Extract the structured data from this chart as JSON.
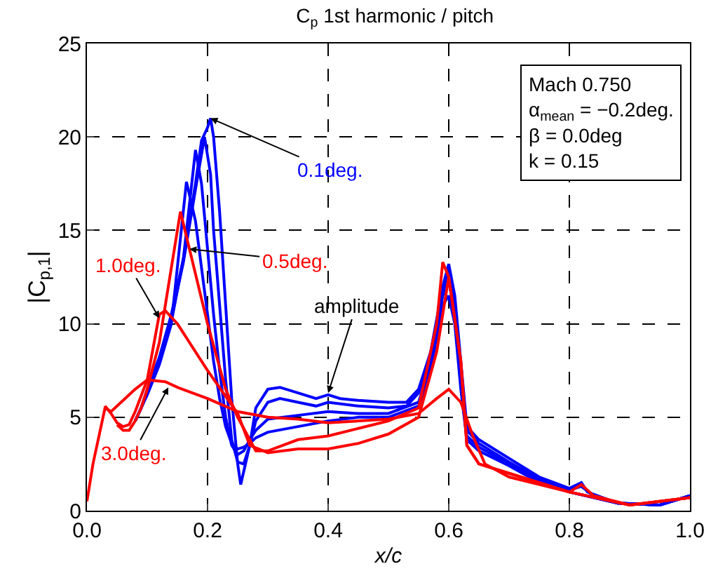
{
  "chart_data": {
    "type": "line",
    "title": "C$_{p}$ 1st harmonic / pitch",
    "xlabel": "x/c",
    "ylabel": "|C$_{p,1}$|",
    "xlim": [
      0,
      1
    ],
    "xticks": [
      {
        "value": 0,
        "label": "0.0"
      },
      {
        "value": 0.2,
        "label": "0.2"
      },
      {
        "value": 0.4,
        "label": "0.4"
      },
      {
        "value": 0.6,
        "label": "0.6"
      },
      {
        "value": 0.8,
        "label": "0.8"
      },
      {
        "value": 1,
        "label": "1.0"
      }
    ],
    "ylim": [
      0,
      25
    ],
    "yticks": [
      0,
      5,
      10,
      15,
      20,
      25
    ],
    "grid": true,
    "marker": "none",
    "line_style": "solid",
    "series": [
      {
        "color": "#0000ff",
        "x": [
          0.08,
          0.09,
          0.1,
          0.12,
          0.14,
          0.16,
          0.18,
          0.19,
          0.2,
          0.205,
          0.21,
          0.22,
          0.23,
          0.24,
          0.25,
          0.255,
          0.27,
          0.28,
          0.3,
          0.32,
          0.35,
          0.38,
          0.4,
          0.42,
          0.45,
          0.5,
          0.53,
          0.55,
          0.57,
          0.59,
          0.6,
          0.61,
          0.62,
          0.63,
          0.65,
          0.7,
          0.75,
          0.8,
          0.82,
          0.83,
          0.88,
          0.95,
          1
        ],
        "values": [
          4.8,
          5.5,
          6.5,
          8.2,
          10.5,
          13.5,
          17.5,
          19.8,
          20.5,
          21,
          20,
          16,
          11,
          6,
          2.5,
          1.4,
          3.5,
          5.5,
          6.5,
          6.6,
          6.3,
          6,
          6.2,
          6,
          5.9,
          5.8,
          5.8,
          6.5,
          8.5,
          12,
          13.2,
          11.5,
          8,
          4.5,
          3.8,
          2.8,
          1.8,
          1.2,
          1.5,
          1,
          0.4,
          0.3,
          0.8
        ]
      },
      {
        "color": "#0000ff",
        "x": [
          0.08,
          0.09,
          0.1,
          0.12,
          0.14,
          0.16,
          0.18,
          0.195,
          0.205,
          0.21,
          0.22,
          0.23,
          0.24,
          0.25,
          0.26,
          0.27,
          0.28,
          0.3,
          0.32,
          0.35,
          0.38,
          0.4,
          0.45,
          0.5,
          0.53,
          0.55,
          0.57,
          0.59,
          0.6,
          0.61,
          0.62,
          0.63,
          0.65,
          0.7,
          0.75,
          0.8,
          0.82,
          0.84,
          0.88,
          0.95,
          1
        ],
        "values": [
          4.8,
          5.5,
          6.4,
          8,
          10.3,
          13.3,
          17.2,
          20,
          18,
          15,
          11,
          7,
          3.8,
          2.6,
          2.5,
          3.5,
          4.8,
          5.8,
          6,
          5.8,
          5.6,
          5.8,
          5.6,
          5.5,
          5.6,
          6.3,
          8.3,
          11.8,
          12.8,
          11,
          7.5,
          4.3,
          3.6,
          2.6,
          1.7,
          1.1,
          1.3,
          0.8,
          0.4,
          0.3,
          0.8
        ]
      },
      {
        "color": "#0000ff",
        "x": [
          0.08,
          0.09,
          0.1,
          0.12,
          0.14,
          0.16,
          0.18,
          0.19,
          0.2,
          0.21,
          0.22,
          0.23,
          0.24,
          0.25,
          0.26,
          0.27,
          0.28,
          0.3,
          0.35,
          0.4,
          0.45,
          0.5,
          0.55,
          0.57,
          0.59,
          0.6,
          0.61,
          0.62,
          0.63,
          0.65,
          0.7,
          0.75,
          0.8,
          0.84,
          0.88,
          0.95,
          1
        ],
        "values": [
          4.8,
          5.5,
          6.3,
          7.9,
          10.1,
          13.5,
          19.3,
          17.5,
          14,
          10.5,
          7.5,
          5,
          3.5,
          3,
          3.2,
          3.8,
          4.3,
          4.9,
          5.1,
          5.3,
          5.2,
          5.2,
          5.8,
          7.8,
          11.5,
          12.3,
          10.5,
          7,
          4,
          3.4,
          2.5,
          1.6,
          1,
          0.7,
          0.4,
          0.3,
          0.8
        ]
      },
      {
        "color": "#0000ff",
        "x": [
          0.08,
          0.09,
          0.1,
          0.12,
          0.14,
          0.165,
          0.18,
          0.19,
          0.2,
          0.21,
          0.22,
          0.23,
          0.24,
          0.25,
          0.26,
          0.27,
          0.28,
          0.3,
          0.35,
          0.4,
          0.45,
          0.5,
          0.55,
          0.57,
          0.59,
          0.6,
          0.61,
          0.62,
          0.63,
          0.65,
          0.7,
          0.75,
          0.8,
          0.84,
          0.88,
          0.95,
          1
        ],
        "values": [
          4.8,
          5.5,
          6.2,
          7.8,
          10,
          17.6,
          15.5,
          13,
          10.5,
          8,
          6,
          4.5,
          3.6,
          3.3,
          3.4,
          3.6,
          3.9,
          4.2,
          4.5,
          4.8,
          5,
          5,
          5.6,
          7.5,
          11,
          11.5,
          10,
          6.5,
          3.8,
          3.2,
          2.4,
          1.5,
          1,
          0.7,
          0.4,
          0.3,
          0.8
        ]
      },
      {
        "color": "#ff0000",
        "x": [
          0.05,
          0.06,
          0.07,
          0.08,
          0.09,
          0.1,
          0.12,
          0.14,
          0.155,
          0.17,
          0.2,
          0.23,
          0.25,
          0.28,
          0.3,
          0.35,
          0.4,
          0.45,
          0.5,
          0.55,
          0.58,
          0.59,
          0.6,
          0.62,
          0.63,
          0.65,
          0.7,
          0.8,
          0.82,
          0.84,
          0.9,
          1
        ],
        "values": [
          4.6,
          4.3,
          4.3,
          4.8,
          5.5,
          6.5,
          9,
          13,
          16,
          14,
          10,
          6.5,
          5,
          3.2,
          3.2,
          3.8,
          4,
          4.4,
          4.8,
          5.5,
          10,
          13.3,
          12.5,
          8,
          3.5,
          2.5,
          2,
          1,
          1.4,
          0.8,
          0.3,
          0.7
        ]
      },
      {
        "color": "#ff0000",
        "x": [
          0.03,
          0.04,
          0.05,
          0.06,
          0.07,
          0.08,
          0.1,
          0.12,
          0.13,
          0.15,
          0.2,
          0.25,
          0.27,
          0.3,
          0.35,
          0.4,
          0.45,
          0.5,
          0.55,
          0.58,
          0.6,
          0.62,
          0.63,
          0.65,
          0.7,
          0.8,
          0.9,
          1
        ],
        "values": [
          5.6,
          5.2,
          4.7,
          4.5,
          4.6,
          5.3,
          7,
          10.5,
          10.7,
          10,
          7.5,
          5.2,
          3.5,
          3.1,
          3.3,
          3.3,
          3.6,
          4.1,
          5,
          8.5,
          12.5,
          8,
          3.5,
          2.5,
          2,
          1,
          0.3,
          0.7
        ]
      },
      {
        "color": "#ff0000",
        "x": [
          0,
          0.01,
          0.02,
          0.03,
          0.04,
          0.05,
          0.07,
          0.08,
          0.1,
          0.13,
          0.15,
          0.2,
          0.25,
          0.3,
          0.35,
          0.4,
          0.5,
          0.55,
          0.58,
          0.6,
          0.62,
          0.64,
          0.66,
          0.7,
          0.8,
          0.9,
          1
        ],
        "values": [
          0.5,
          2.5,
          4,
          5.5,
          5.3,
          5.6,
          6.2,
          6.5,
          7,
          6.9,
          6.6,
          6,
          5.3,
          5,
          4.9,
          4.7,
          4.9,
          5.2,
          6,
          6.5,
          5.8,
          4,
          2.5,
          1.8,
          1,
          0.3,
          0.7
        ]
      }
    ],
    "annotations": [
      {
        "text": "0.1deg.",
        "x": 0.205,
        "y": 21
      },
      {
        "text": "amplitude",
        "x": 0.4,
        "y": 6.3
      },
      {
        "text": "0.5deg.",
        "x": 0.17,
        "y": 14
      },
      {
        "text": "1.0deg.",
        "x": 0.12,
        "y": 10.3
      },
      {
        "text": "3.0deg.",
        "x": 0.135,
        "y": 6.6
      },
      "Mach 0.750\nα$_{mean}$ = −0.2deg.\nβ = 0.0deg\nk = 0.15"
    ]
  }
}
